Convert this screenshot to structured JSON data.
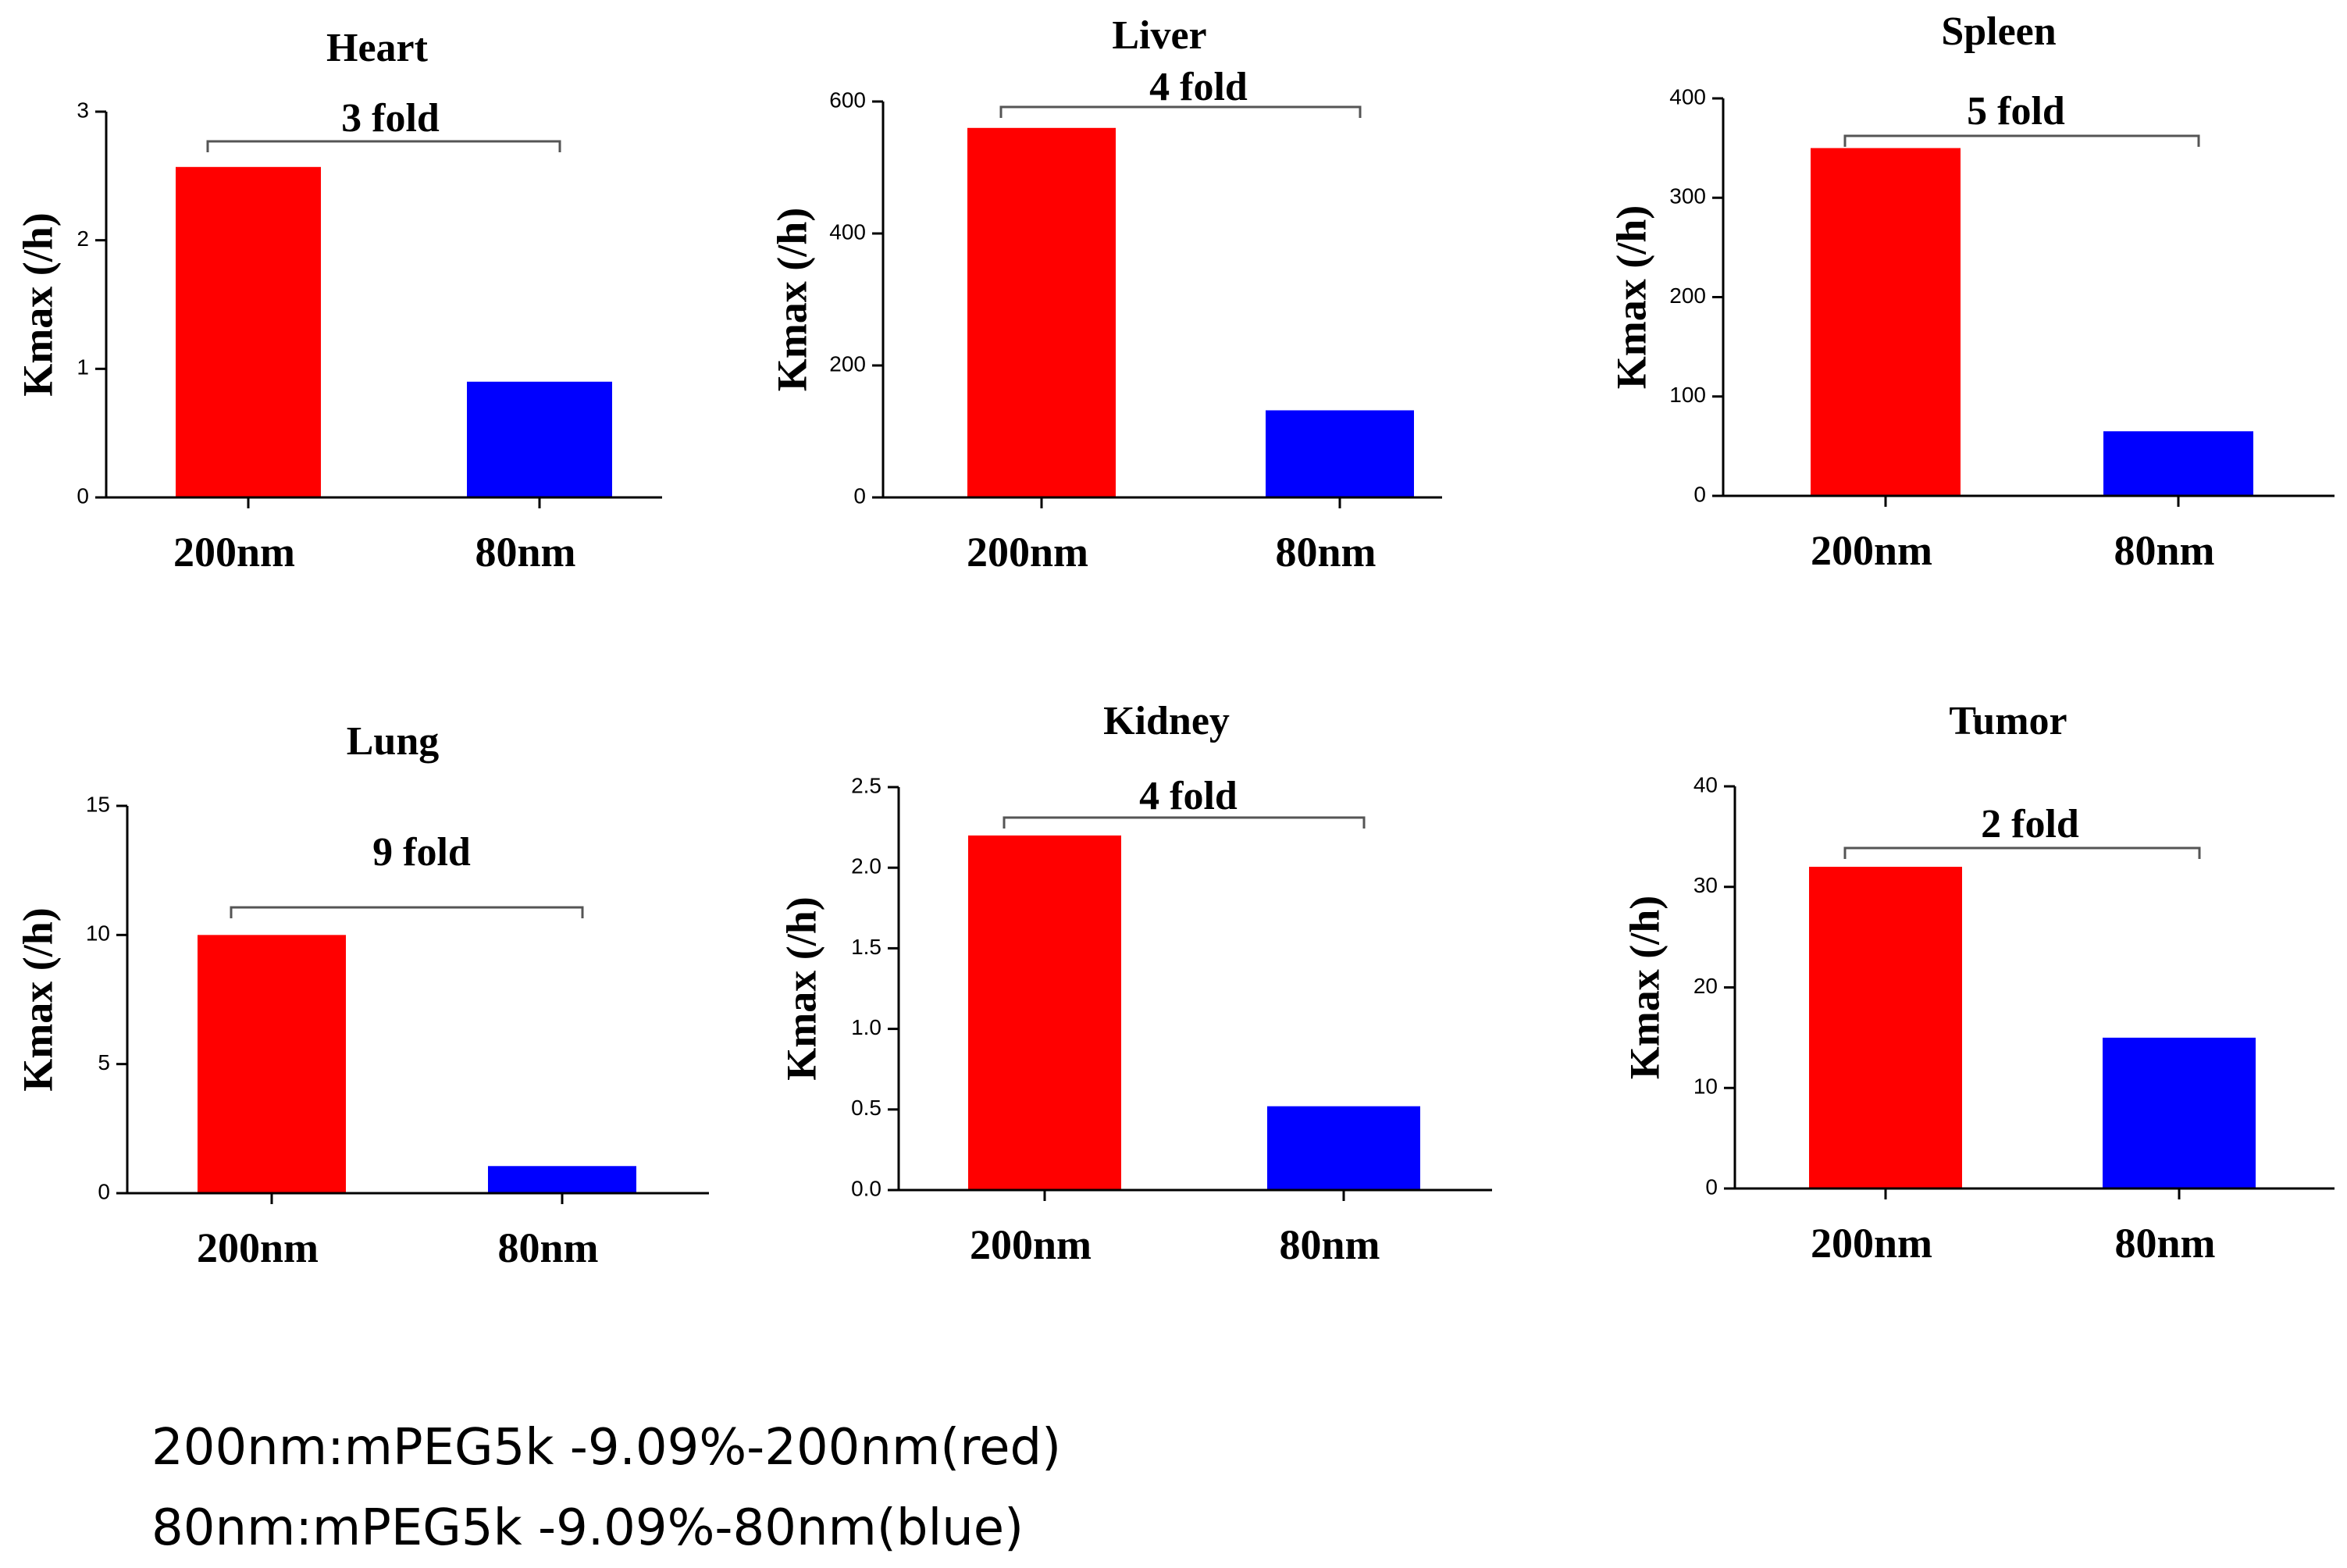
{
  "chart_data": [
    {
      "type": "bar",
      "title": "Heart",
      "categories": [
        "200nm",
        "80nm"
      ],
      "values": [
        2.57,
        0.9
      ],
      "ylabel": "Kmax (/h)",
      "xlabel": "",
      "ylim": [
        0,
        3
      ],
      "yticks": [
        "0",
        "1",
        "2",
        "3"
      ],
      "annotation": "3 fold",
      "colors": [
        "#ff0000",
        "#0000ff"
      ]
    },
    {
      "type": "bar",
      "title": "Liver",
      "categories": [
        "200nm",
        "80nm"
      ],
      "values": [
        560,
        132
      ],
      "ylabel": "Kmax (/h)",
      "xlabel": "",
      "ylim": [
        0,
        600
      ],
      "yticks": [
        "0",
        "200",
        "400",
        "600"
      ],
      "annotation": "4 fold",
      "colors": [
        "#ff0000",
        "#0000ff"
      ]
    },
    {
      "type": "bar",
      "title": "Spleen",
      "categories": [
        "200nm",
        "80nm"
      ],
      "values": [
        350,
        65
      ],
      "ylabel": "Kmax (/h)",
      "xlabel": "",
      "ylim": [
        0,
        400
      ],
      "yticks": [
        "0",
        "100",
        "200",
        "300",
        "400"
      ],
      "annotation": "5 fold",
      "colors": [
        "#ff0000",
        "#0000ff"
      ]
    },
    {
      "type": "bar",
      "title": "Lung",
      "categories": [
        "200nm",
        "80nm"
      ],
      "values": [
        10,
        1.05
      ],
      "ylabel": "Kmax (/h)",
      "xlabel": "",
      "ylim": [
        0,
        15
      ],
      "yticks": [
        "0",
        "5",
        "10",
        "15"
      ],
      "annotation": "9 fold",
      "colors": [
        "#ff0000",
        "#0000ff"
      ]
    },
    {
      "type": "bar",
      "title": "Kidney",
      "categories": [
        "200nm",
        "80nm"
      ],
      "values": [
        2.2,
        0.52
      ],
      "ylabel": "Kmax (/h)",
      "xlabel": "",
      "ylim": [
        0,
        2.5
      ],
      "yticks": [
        "0.0",
        "0.5",
        "1.0",
        "1.5",
        "2.0",
        "2.5"
      ],
      "annotation": "4 fold",
      "colors": [
        "#ff0000",
        "#0000ff"
      ]
    },
    {
      "type": "bar",
      "title": "Tumor",
      "categories": [
        "200nm",
        "80nm"
      ],
      "values": [
        32,
        15
      ],
      "ylabel": "Kmax (/h)",
      "xlabel": "",
      "ylim": [
        0,
        40
      ],
      "yticks": [
        "0",
        "10",
        "20",
        "30",
        "40"
      ],
      "annotation": "2 fold",
      "colors": [
        "#ff0000",
        "#0000ff"
      ]
    }
  ],
  "legend": [
    "200nm:mPEG5k -9.09%-200nm(red)",
    "80nm:mPEG5k -9.09%-80nm(blue)"
  ]
}
